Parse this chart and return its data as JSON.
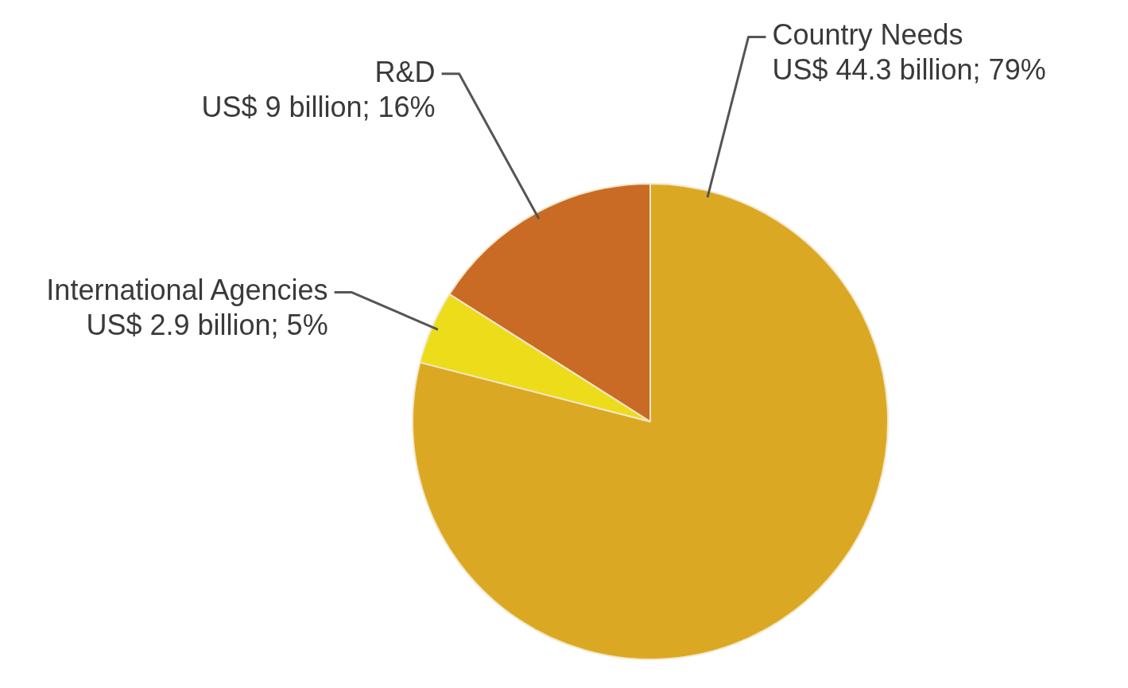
{
  "chart_data": {
    "type": "pie",
    "categories": [
      "Country Needs",
      "International Agencies",
      "R&D"
    ],
    "values": [
      79,
      5,
      16
    ],
    "colors": [
      "#dba823",
      "#ecdc1a",
      "#c96a25"
    ],
    "value_labels": [
      "US$ 44.3 billion; 79%",
      "US$ 2.9 billion; 5%",
      "US$ 9 billion; 16%"
    ],
    "legend": false
  }
}
